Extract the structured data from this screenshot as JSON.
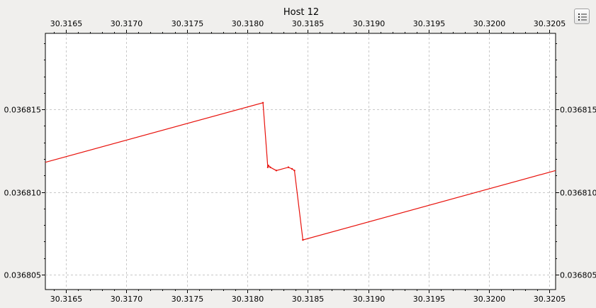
{
  "chart_data": {
    "type": "line",
    "title": "Host 12",
    "xlabel": "",
    "ylabel": "",
    "xlim": [
      30.31633,
      30.32055
    ],
    "ylim": [
      0.0368041,
      0.0368196
    ],
    "x_ticks": [
      30.3165,
      30.317,
      30.3175,
      30.318,
      30.3185,
      30.319,
      30.3195,
      30.32,
      30.3205
    ],
    "x_tick_labels": [
      "30.3165",
      "30.3170",
      "30.3175",
      "30.3180",
      "30.3185",
      "30.3190",
      "30.3195",
      "30.3200",
      "30.3205"
    ],
    "y_ticks": [
      0.036805,
      0.03681,
      0.036815
    ],
    "y_tick_labels": [
      "0.036805",
      "0.036810",
      "0.036815"
    ],
    "grid": true,
    "axes": [
      "left",
      "right",
      "top",
      "bottom"
    ],
    "series": [
      {
        "color": "#e8120c",
        "x": [
          30.31633,
          30.31813,
          30.31817,
          30.318175,
          30.31819,
          30.31824,
          30.31834,
          30.31837,
          30.31839,
          30.31846,
          30.32055
        ],
        "y": [
          0.0368118,
          0.0368154,
          0.0368115,
          0.0368116,
          0.0368115,
          0.0368113,
          0.0368115,
          0.0368114,
          0.0368113,
          0.0368071,
          0.0368113
        ]
      }
    ]
  },
  "toolbar": {
    "legend_icon": "list-icon"
  }
}
